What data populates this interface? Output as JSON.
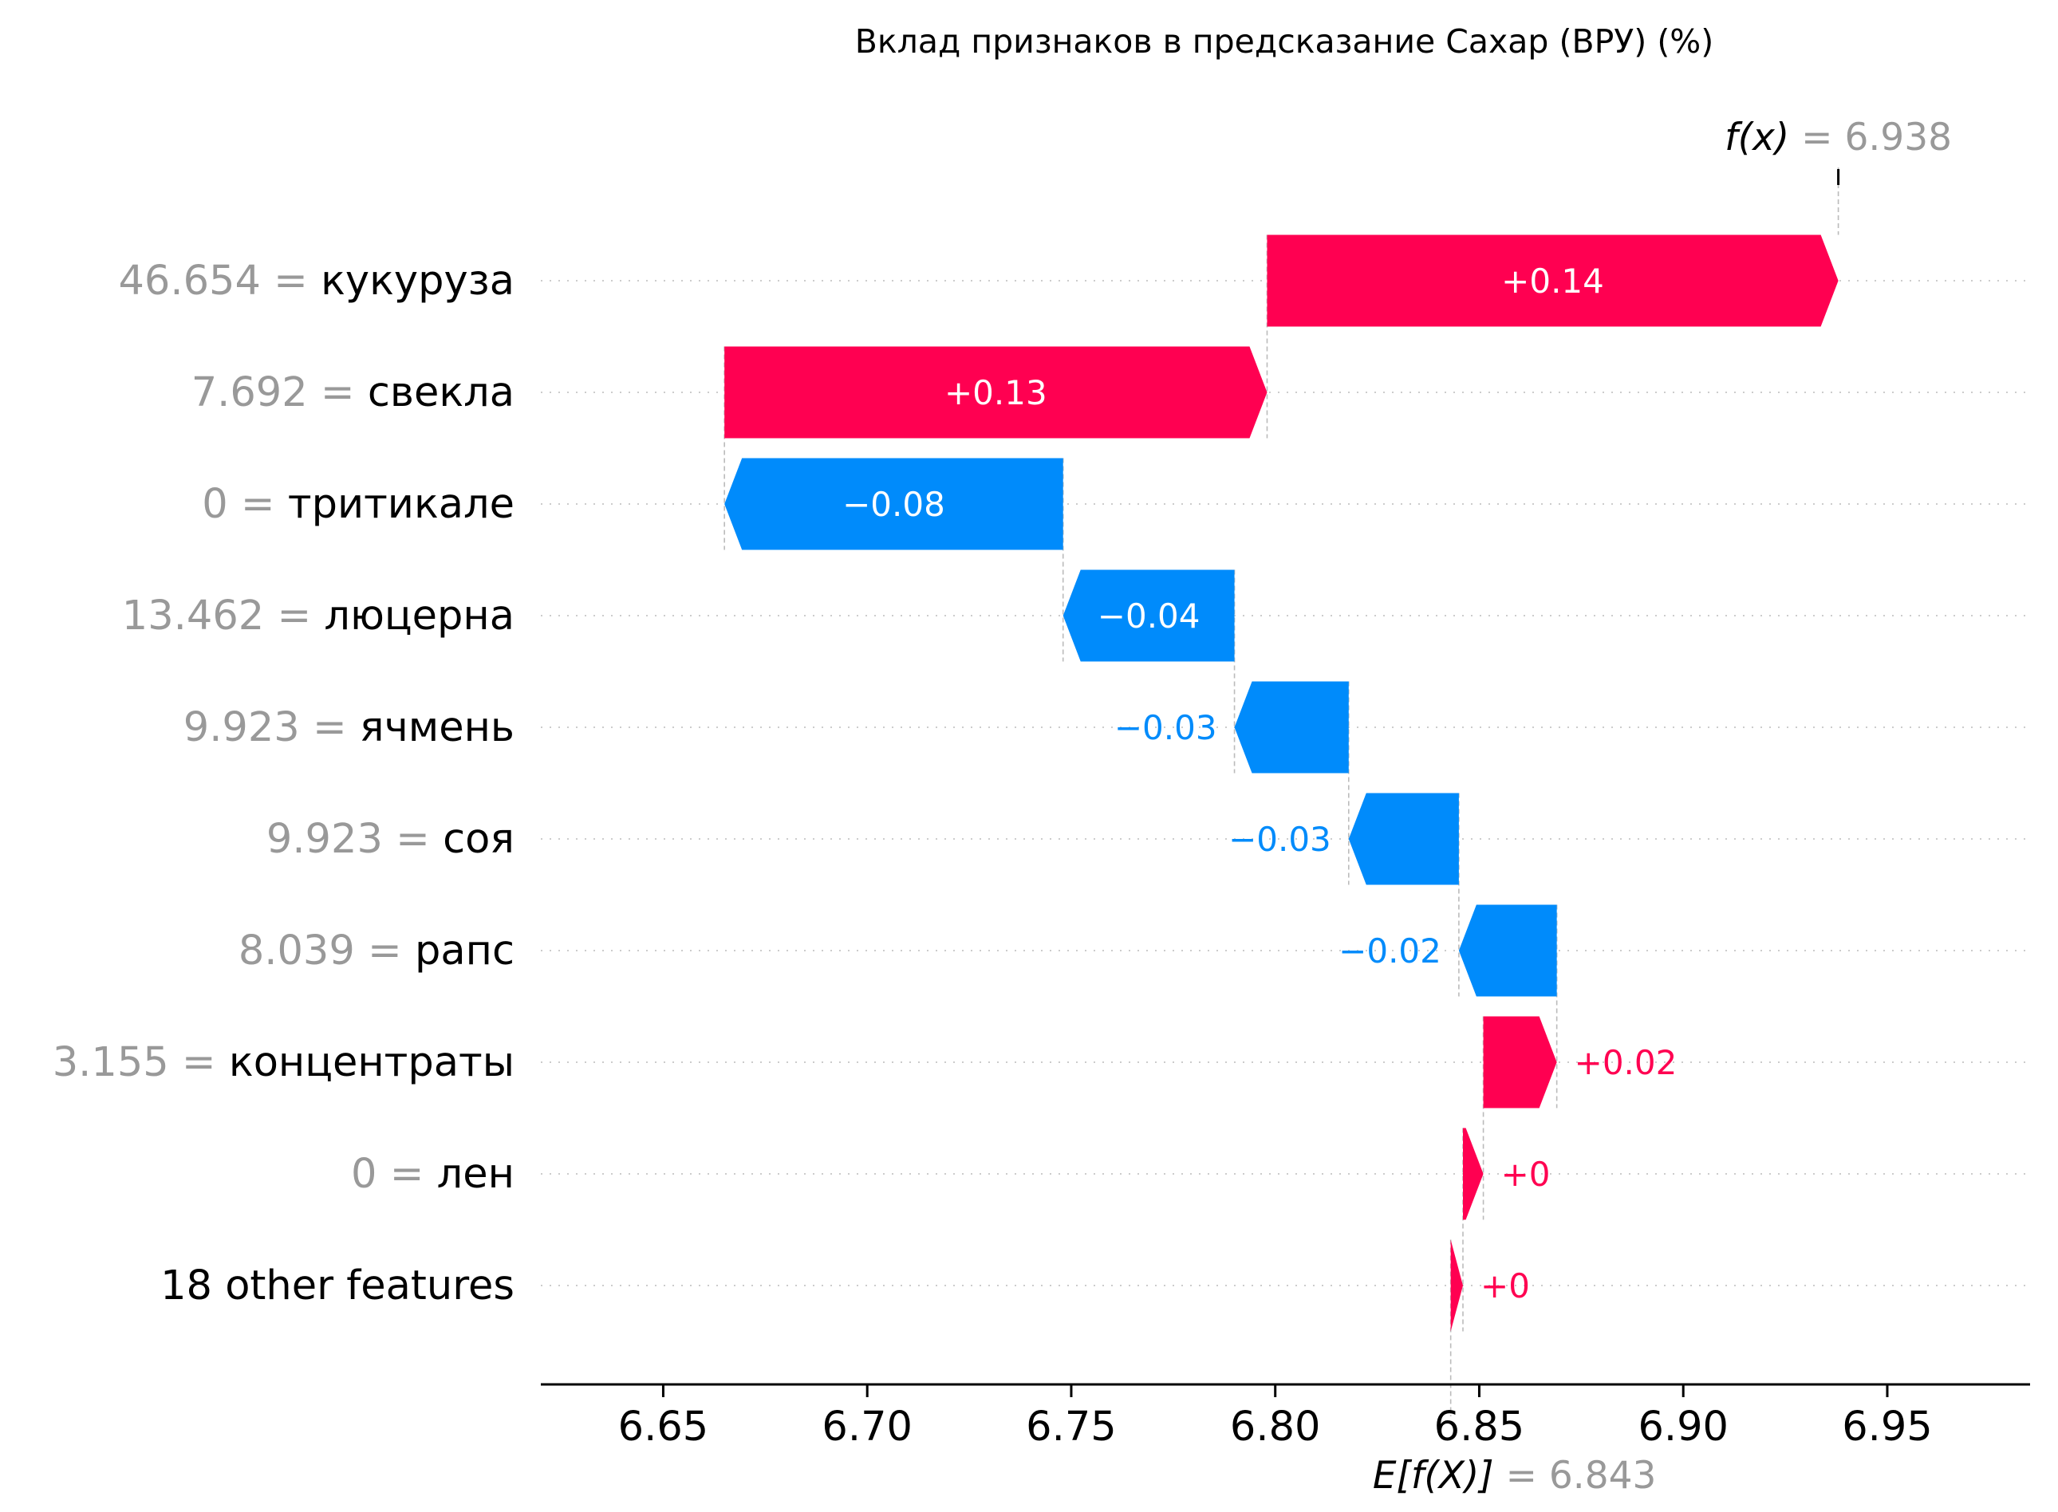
{
  "colors": {
    "positive": "#ff0051",
    "negative": "#008bfb",
    "feature_value": "#999999",
    "feature_name": "#000000",
    "guide": "#bbbbbb",
    "axis": "#000000"
  },
  "chart_data": {
    "type": "waterfall",
    "title": "Вклад признаков в предсказание Сахар (ВРУ) (%)",
    "xlim": [
      6.62,
      6.985
    ],
    "x_ticks": [
      6.65,
      6.7,
      6.75,
      6.8,
      6.85,
      6.9,
      6.95
    ],
    "x_tick_labels": [
      "6.65",
      "6.70",
      "6.75",
      "6.80",
      "6.85",
      "6.90",
      "6.95"
    ],
    "base_value": 6.843,
    "base_label_prefix": "E[f(X)]",
    "base_label_value": "= 6.843",
    "output_value": 6.938,
    "output_label_prefix": "f(x)",
    "output_label_value": "= 6.938",
    "features": [
      {
        "value_text": "46.654 =",
        "name": "кукуруза",
        "start": 6.798,
        "end": 6.938,
        "label": "+0.14",
        "sign": "positive"
      },
      {
        "value_text": "7.692 =",
        "name": "свекла",
        "start": 6.665,
        "end": 6.798,
        "label": "+0.13",
        "sign": "positive"
      },
      {
        "value_text": "0 =",
        "name": "тритикале",
        "start": 6.748,
        "end": 6.665,
        "label": "−0.08",
        "sign": "negative"
      },
      {
        "value_text": "13.462 =",
        "name": "люцерна",
        "start": 6.79,
        "end": 6.748,
        "label": "−0.04",
        "sign": "negative"
      },
      {
        "value_text": "9.923 =",
        "name": "ячмень",
        "start": 6.818,
        "end": 6.79,
        "label": "−0.03",
        "sign": "negative"
      },
      {
        "value_text": "9.923 =",
        "name": "соя",
        "start": 6.845,
        "end": 6.818,
        "label": "−0.03",
        "sign": "negative"
      },
      {
        "value_text": "8.039 =",
        "name": "рапс",
        "start": 6.869,
        "end": 6.845,
        "label": "−0.02",
        "sign": "negative"
      },
      {
        "value_text": "3.155 =",
        "name": "концентраты",
        "start": 6.851,
        "end": 6.869,
        "label": "+0.02",
        "sign": "positive"
      },
      {
        "value_text": "0 =",
        "name": "лен",
        "start": 6.846,
        "end": 6.851,
        "label": "+0",
        "sign": "positive"
      },
      {
        "value_text": "",
        "name": "18 other features",
        "start": 6.843,
        "end": 6.846,
        "label": "+0",
        "sign": "positive"
      }
    ]
  }
}
